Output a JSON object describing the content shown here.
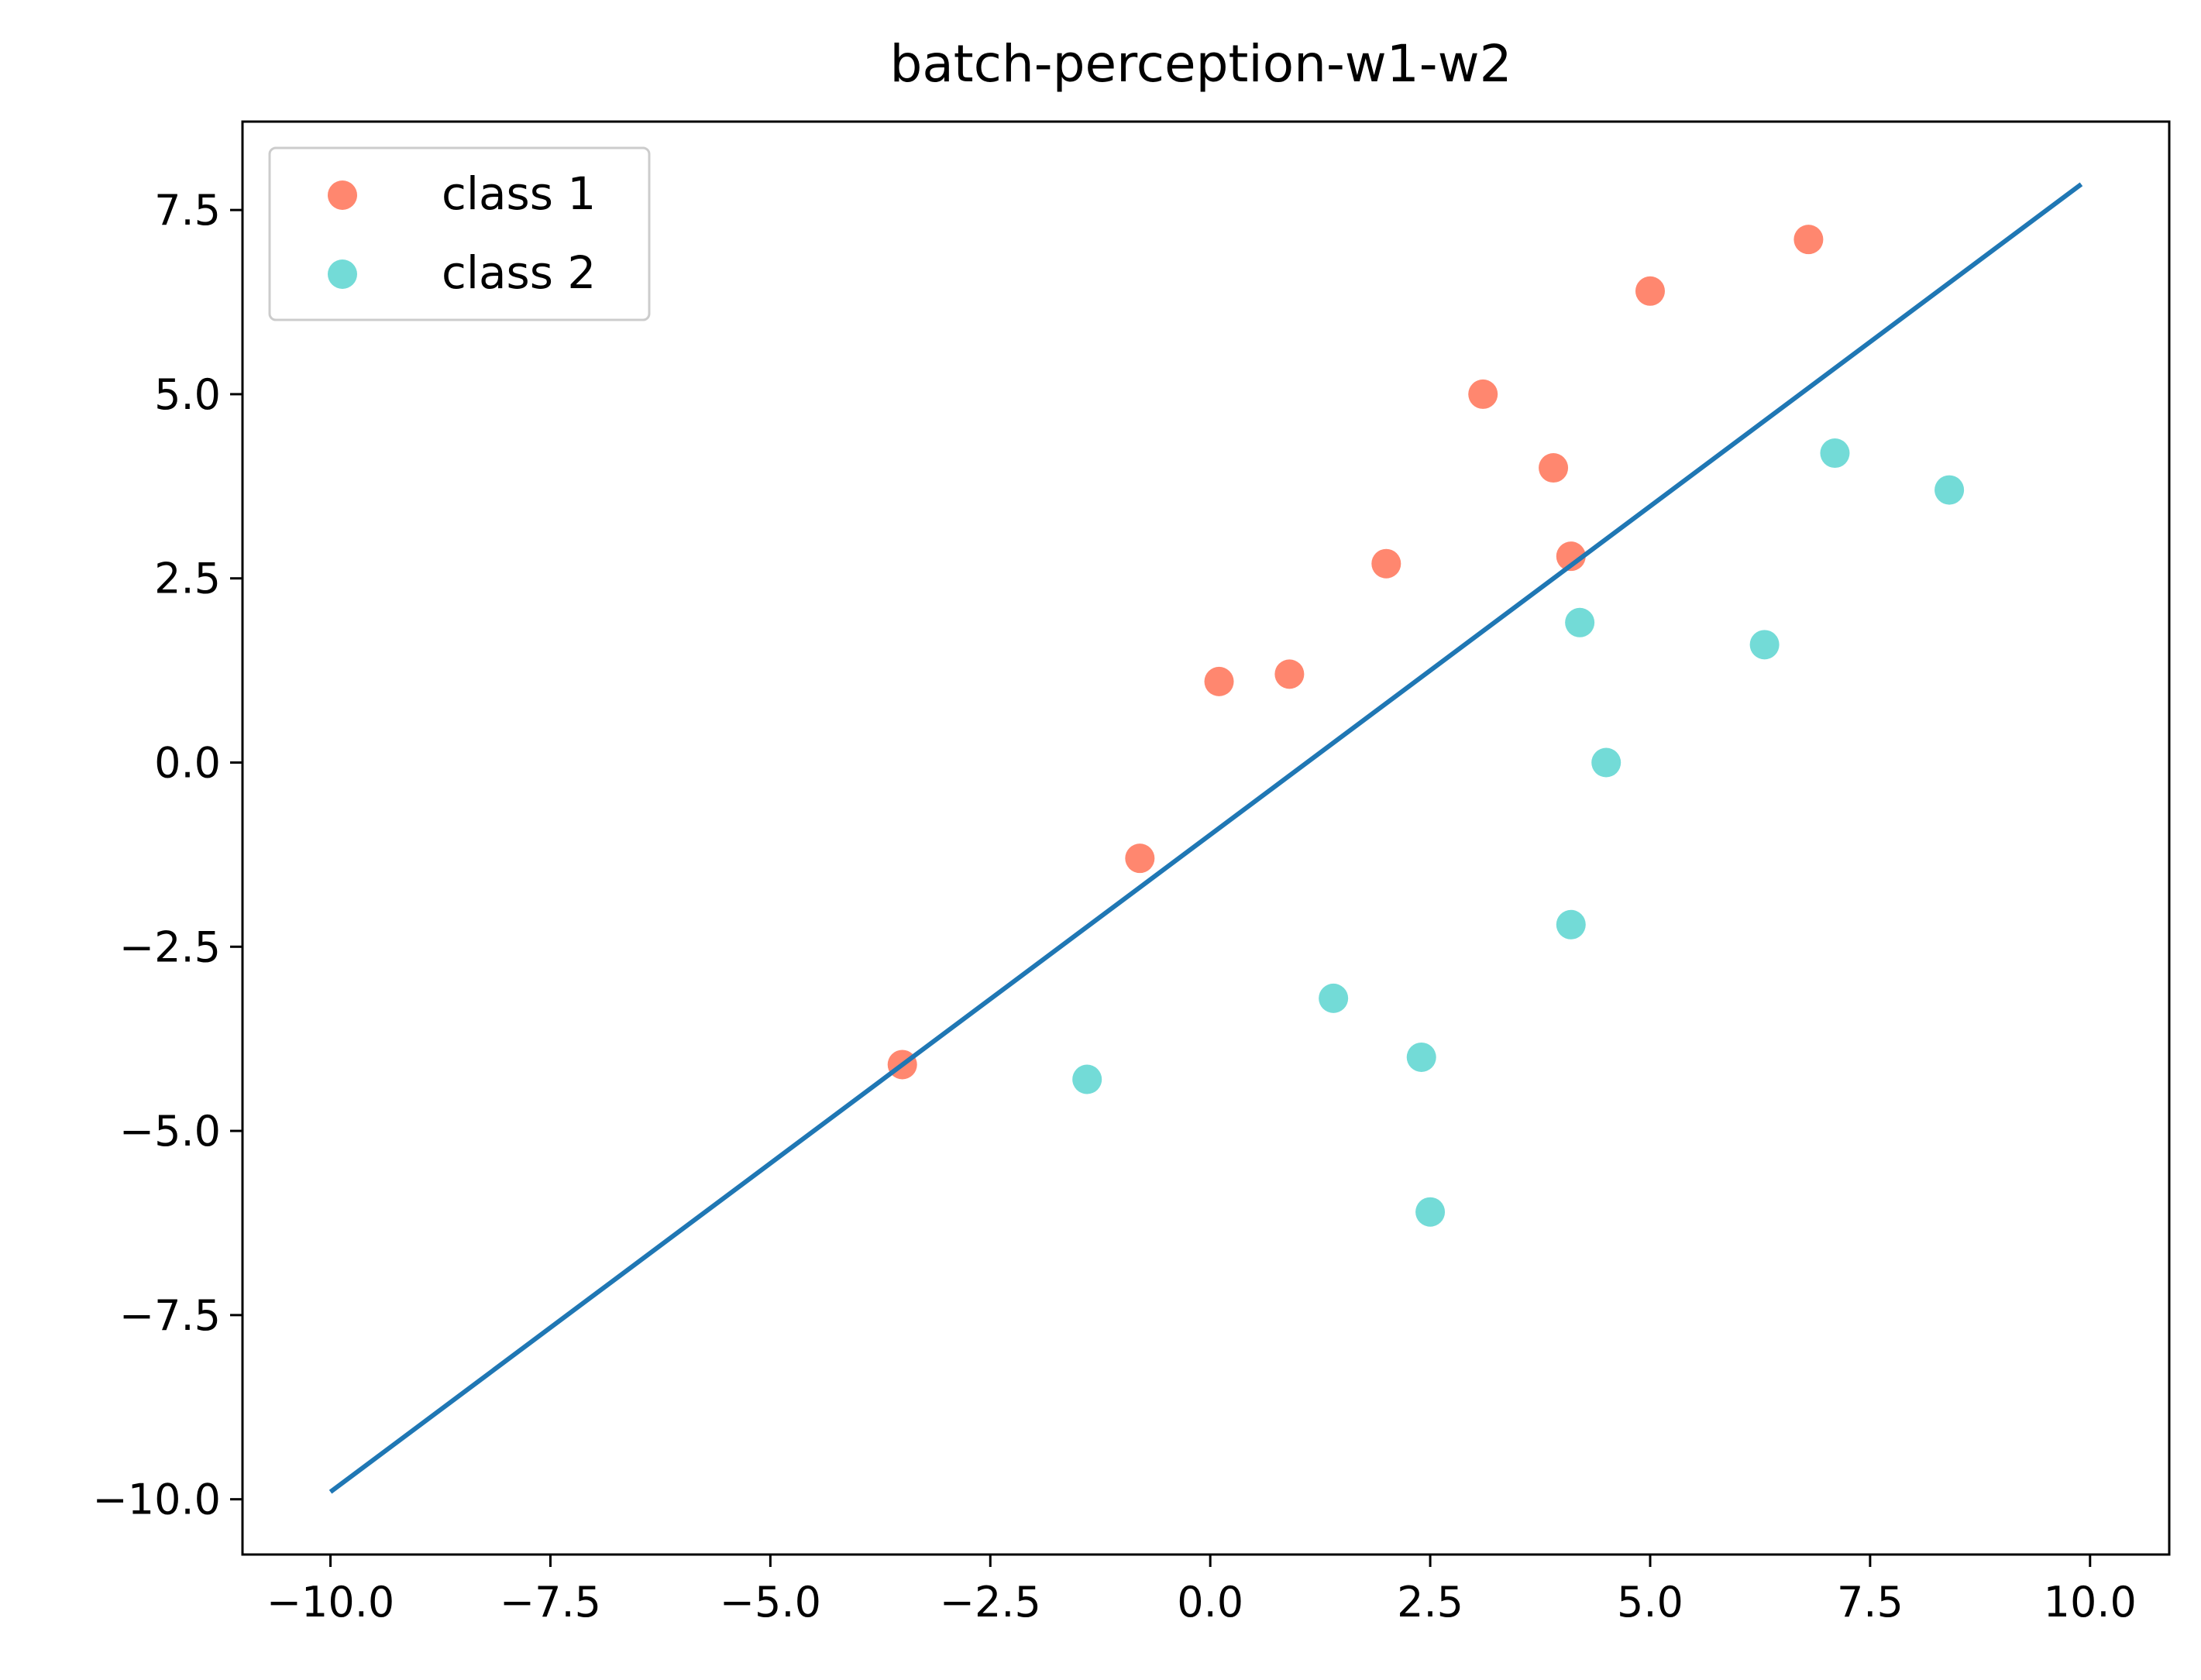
{
  "chart_data": {
    "type": "scatter",
    "title": "batch-perception-w1-w2",
    "xlabel": "",
    "ylabel": "",
    "xlim": [
      -11.0,
      10.9
    ],
    "ylim": [
      -10.75,
      8.7
    ],
    "x_ticks": [
      -10.0,
      -7.5,
      -5.0,
      -2.5,
      0.0,
      2.5,
      5.0,
      7.5,
      10.0
    ],
    "x_tick_labels": [
      "−10.0",
      "−7.5",
      "−5.0",
      "−2.5",
      "0.0",
      "2.5",
      "5.0",
      "7.5",
      "10.0"
    ],
    "y_ticks": [
      -10.0,
      -7.5,
      -5.0,
      -2.5,
      0.0,
      2.5,
      5.0,
      7.5
    ],
    "y_tick_labels": [
      "−10.0",
      "−7.5",
      "−5.0",
      "−2.5",
      "0.0",
      "2.5",
      "5.0",
      "7.5"
    ],
    "grid": false,
    "legend_position": "top-left",
    "series": [
      {
        "name": "class 1",
        "color": "#ff7256",
        "points": [
          [
            -3.5,
            -4.1
          ],
          [
            -0.8,
            -1.3
          ],
          [
            0.1,
            1.1
          ],
          [
            0.9,
            1.2
          ],
          [
            2.0,
            2.7
          ],
          [
            3.1,
            5.0
          ],
          [
            3.9,
            4.0
          ],
          [
            4.1,
            2.8
          ],
          [
            5.0,
            6.4
          ],
          [
            6.8,
            7.1
          ]
        ]
      },
      {
        "name": "class 2",
        "color": "#5ad5d0",
        "points": [
          [
            -1.4,
            -4.3
          ],
          [
            1.4,
            -3.2
          ],
          [
            2.4,
            -4.0
          ],
          [
            2.5,
            -6.1
          ],
          [
            4.1,
            -2.2
          ],
          [
            4.2,
            1.9
          ],
          [
            4.5,
            0.0
          ],
          [
            6.3,
            1.6
          ],
          [
            7.1,
            4.2
          ],
          [
            8.4,
            3.7
          ]
        ]
      }
    ],
    "lines": [
      {
        "color": "#1f77b4",
        "points": [
          [
            -10.0,
            -9.9
          ],
          [
            9.9,
            7.85
          ]
        ]
      }
    ]
  }
}
